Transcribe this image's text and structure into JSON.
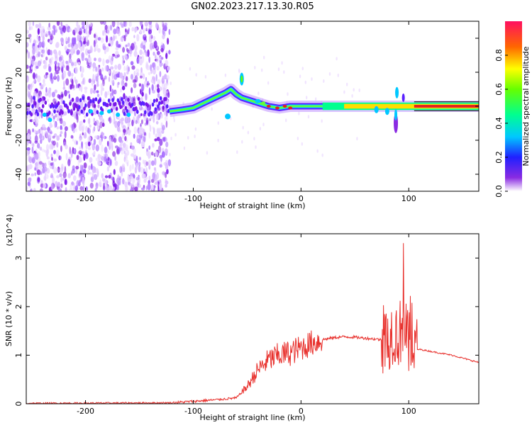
{
  "title": "GN02.2023.217.13.30.R05",
  "colors": {
    "trace": "#e8302c",
    "axis": "#000000",
    "spectrogram_low": "#8b28ff",
    "spectrogram_high": "#e31f1f"
  },
  "chart_data": [
    {
      "type": "heatmap",
      "name": "spectrogram",
      "xlabel": "Height of straight line (km)",
      "ylabel": "Frequency (Hz)",
      "xlim": [
        -255,
        165
      ],
      "ylim": [
        -50,
        50
      ],
      "x_ticks": [
        -200,
        -100,
        0,
        100
      ],
      "y_ticks": [
        -40,
        -20,
        0,
        20,
        40
      ],
      "colorbar": {
        "label": "Normalized spectral amplitude",
        "range": [
          0.0,
          1.0
        ],
        "ticks": [
          "0.0",
          "0.2",
          "0.4",
          "0.6",
          "0.8"
        ]
      },
      "features": [
        {
          "x": -55,
          "f": 15,
          "amp": 0.5
        },
        {
          "x": 88,
          "f": -15,
          "amp": 0.4
        },
        {
          "x": 95,
          "f": 5,
          "amp": 0.3
        }
      ]
    },
    {
      "type": "line",
      "name": "snr",
      "xlabel": "Height of straight line (km)",
      "ylabel": "SNR (10 * v/v)",
      "y_multiplier": "(x10^4)",
      "xlim": [
        -255,
        165
      ],
      "ylim": [
        0,
        3.5
      ],
      "x_ticks": [
        -200,
        -100,
        0,
        100
      ],
      "y_ticks": [
        0,
        1,
        2,
        3
      ],
      "grid": false,
      "x": [
        -255,
        -120,
        -100,
        -80,
        -60,
        -50,
        -40,
        -30,
        -20,
        -10,
        0,
        10,
        20,
        30,
        40,
        50,
        60,
        70,
        80,
        85,
        90,
        95,
        100,
        105,
        110,
        120,
        140,
        165
      ],
      "y": [
        0.01,
        0.02,
        0.05,
        0.08,
        0.12,
        0.35,
        0.7,
        0.9,
        1.0,
        1.05,
        1.15,
        1.25,
        1.32,
        1.36,
        1.38,
        1.37,
        1.35,
        1.33,
        1.3,
        1.5,
        1.4,
        1.6,
        1.2,
        1.1,
        1.12,
        1.08,
        1.0,
        0.85
      ]
    }
  ]
}
